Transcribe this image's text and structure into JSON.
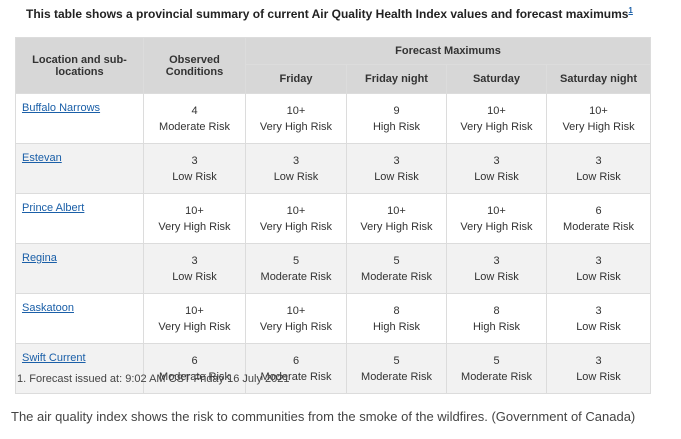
{
  "caption": {
    "text": "This table shows a provincial summary of current Air Quality Health Index values and forecast maximums",
    "footnote_marker": "1"
  },
  "table": {
    "headers": {
      "location": "Location and sub-locations",
      "observed": "Observed Conditions",
      "forecast_group": "Forecast Maximums",
      "periods": [
        "Friday",
        "Friday night",
        "Saturday",
        "Saturday night"
      ]
    },
    "rows": [
      {
        "location": "Buffalo Narrows",
        "cells": [
          {
            "value": "4",
            "risk": "Moderate Risk"
          },
          {
            "value": "10+",
            "risk": "Very High Risk"
          },
          {
            "value": "9",
            "risk": "High Risk"
          },
          {
            "value": "10+",
            "risk": "Very High Risk"
          },
          {
            "value": "10+",
            "risk": "Very High Risk"
          }
        ]
      },
      {
        "location": "Estevan",
        "cells": [
          {
            "value": "3",
            "risk": "Low Risk"
          },
          {
            "value": "3",
            "risk": "Low Risk"
          },
          {
            "value": "3",
            "risk": "Low Risk"
          },
          {
            "value": "3",
            "risk": "Low Risk"
          },
          {
            "value": "3",
            "risk": "Low Risk"
          }
        ]
      },
      {
        "location": "Prince Albert",
        "cells": [
          {
            "value": "10+",
            "risk": "Very High Risk"
          },
          {
            "value": "10+",
            "risk": "Very High Risk"
          },
          {
            "value": "10+",
            "risk": "Very High Risk"
          },
          {
            "value": "10+",
            "risk": "Very High Risk"
          },
          {
            "value": "6",
            "risk": "Moderate Risk"
          }
        ]
      },
      {
        "location": "Regina",
        "cells": [
          {
            "value": "3",
            "risk": "Low Risk"
          },
          {
            "value": "5",
            "risk": "Moderate Risk"
          },
          {
            "value": "5",
            "risk": "Moderate Risk"
          },
          {
            "value": "3",
            "risk": "Low Risk"
          },
          {
            "value": "3",
            "risk": "Low Risk"
          }
        ]
      },
      {
        "location": "Saskatoon",
        "cells": [
          {
            "value": "10+",
            "risk": "Very High Risk"
          },
          {
            "value": "10+",
            "risk": "Very High Risk"
          },
          {
            "value": "8",
            "risk": "High Risk"
          },
          {
            "value": "8",
            "risk": "High Risk"
          },
          {
            "value": "3",
            "risk": "Low Risk"
          }
        ]
      },
      {
        "location": "Swift Current",
        "cells": [
          {
            "value": "6",
            "risk": "Moderate Risk"
          },
          {
            "value": "6",
            "risk": "Moderate Risk"
          },
          {
            "value": "5",
            "risk": "Moderate Risk"
          },
          {
            "value": "5",
            "risk": "Moderate Risk"
          },
          {
            "value": "3",
            "risk": "Low Risk"
          }
        ]
      }
    ]
  },
  "footnote": "1. Forecast issued at: 9:02 AM CST Friday 16 July 2021",
  "article_caption": "The air quality index shows the risk to communities from the smoke of the wildfires. (Government of Canada)",
  "colors": {
    "header_bg": "#d7d7d7",
    "stripe_bg": "#f2f2f2",
    "link": "#1a5fa8",
    "text": "#333333"
  }
}
